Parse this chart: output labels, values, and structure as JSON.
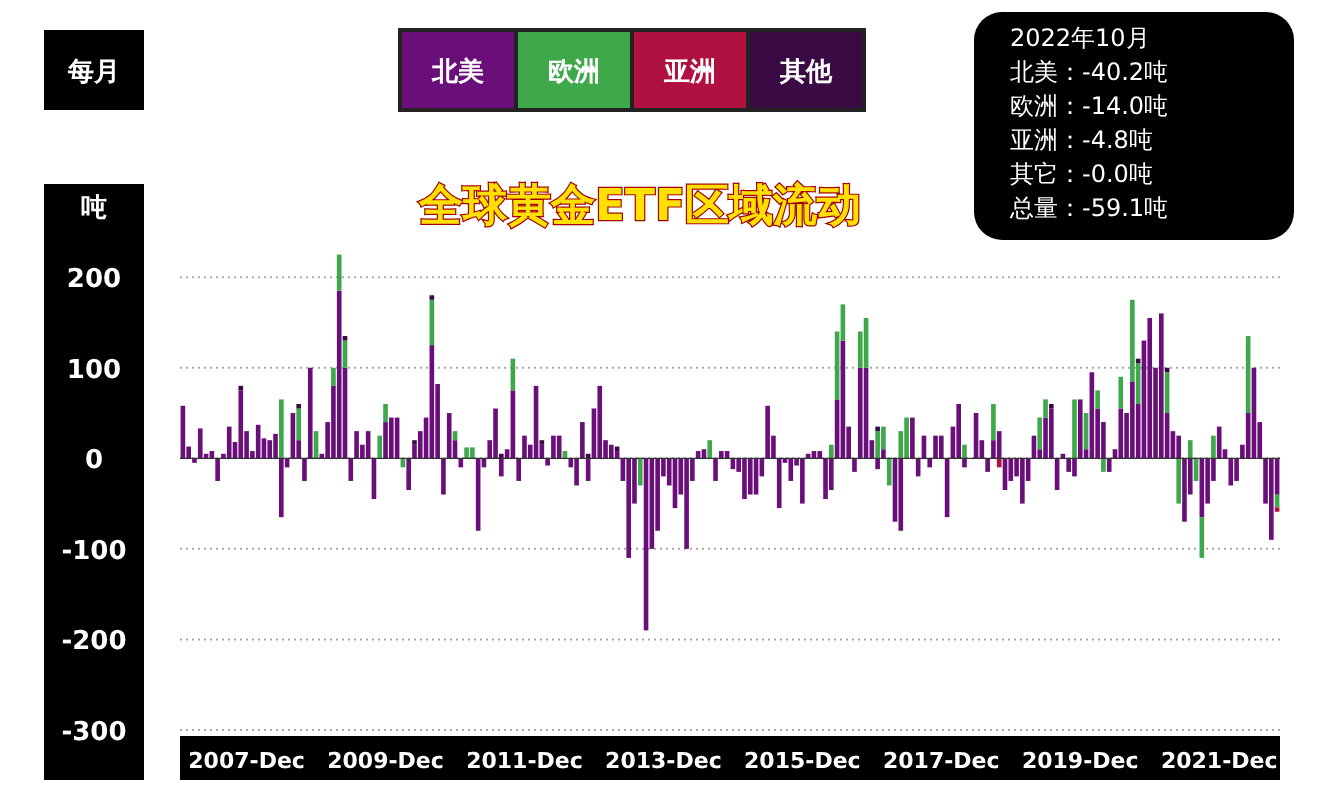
{
  "chart_data": {
    "type": "bar",
    "stacked": true,
    "title": "全球黄金ETF区域流动",
    "ylabel": "吨",
    "legend": "top",
    "grid": "y",
    "ylim": [
      -300,
      230
    ],
    "yticks": [
      -300,
      -200,
      -100,
      0,
      100,
      200
    ],
    "annotations": [
      "每月",
      "2022年10月",
      "北美：-40.2吨",
      "欧洲：-14.0吨",
      "亚洲：-4.8吨",
      "其它：-0.0吨",
      "总量：-59.1吨"
    ],
    "categories": [
      null,
      null,
      null,
      null,
      null,
      null,
      null,
      null,
      null,
      null,
      null,
      "2007-Dec",
      null,
      null,
      null,
      null,
      null,
      null,
      null,
      null,
      null,
      null,
      null,
      null,
      null,
      null,
      null,
      null,
      null,
      null,
      null,
      null,
      null,
      null,
      null,
      "2009-Dec",
      null,
      null,
      null,
      null,
      null,
      null,
      null,
      null,
      null,
      null,
      null,
      null,
      null,
      null,
      null,
      null,
      null,
      null,
      null,
      null,
      null,
      null,
      null,
      "2011-Dec",
      null,
      null,
      null,
      null,
      null,
      null,
      null,
      null,
      null,
      null,
      null,
      null,
      null,
      null,
      null,
      null,
      null,
      null,
      null,
      null,
      null,
      null,
      null,
      "2013-Dec",
      null,
      null,
      null,
      null,
      null,
      null,
      null,
      null,
      null,
      null,
      null,
      null,
      null,
      null,
      null,
      null,
      null,
      null,
      null,
      null,
      null,
      null,
      null,
      "2015-Dec",
      null,
      null,
      null,
      null,
      null,
      null,
      null,
      null,
      null,
      null,
      null,
      null,
      null,
      null,
      null,
      null,
      null,
      null,
      null,
      null,
      null,
      null,
      null,
      "2017-Dec",
      null,
      null,
      null,
      null,
      null,
      null,
      null,
      null,
      null,
      null,
      null,
      null,
      null,
      null,
      null,
      null,
      null,
      null,
      null,
      null,
      null,
      null,
      null,
      "2019-Dec",
      null,
      null,
      null,
      null,
      null,
      null,
      null,
      null,
      null,
      null,
      null,
      null,
      null,
      null,
      null,
      null,
      null,
      null,
      null,
      null,
      null,
      null,
      null,
      "2021-Dec",
      null,
      null,
      null,
      null,
      null,
      null,
      null,
      null,
      null,
      null
    ],
    "series": [
      {
        "name": "北美",
        "color": "#6a0f7a",
        "values": [
          58,
          13,
          -5,
          33,
          5,
          8,
          -25,
          5,
          35,
          18,
          75,
          30,
          8,
          37,
          22,
          20,
          27,
          -65,
          -10,
          50,
          20,
          -25,
          100,
          0,
          5,
          40,
          80,
          185,
          100,
          -25,
          30,
          15,
          30,
          -45,
          0,
          40,
          45,
          45,
          0,
          -35,
          15,
          30,
          45,
          125,
          82,
          -40,
          50,
          20,
          -10,
          0,
          0,
          -80,
          -10,
          20,
          55,
          -20,
          10,
          75,
          -25,
          25,
          15,
          80,
          15,
          -8,
          25,
          25,
          0,
          -10,
          -30,
          40,
          -25,
          55,
          80,
          20,
          15,
          8,
          -25,
          -110,
          -50,
          0,
          -190,
          -100,
          -80,
          -20,
          -30,
          -55,
          -40,
          -100,
          -25,
          8,
          10,
          0,
          -25,
          8,
          8,
          -12,
          -15,
          -45,
          -40,
          -40,
          -20,
          58,
          25,
          -55,
          -5,
          -25,
          -8,
          -50,
          5,
          8,
          8,
          -45,
          -35,
          65,
          130,
          35,
          -15,
          100,
          100,
          20,
          -12,
          10,
          0,
          -70,
          -80,
          0,
          45,
          -20,
          25,
          -10,
          25,
          25,
          -65,
          35,
          60,
          -10,
          0,
          50,
          20,
          -15,
          20,
          30,
          -35,
          -25,
          -20,
          -50,
          -25,
          25,
          10,
          45,
          55,
          -35,
          5,
          -15,
          -20,
          65,
          10,
          95,
          55,
          40,
          -15,
          10,
          55,
          50,
          85,
          60,
          130,
          155,
          100,
          160,
          50,
          30,
          25,
          -70,
          -40,
          0,
          -65,
          -50,
          -25,
          35,
          10,
          -30,
          -25,
          15,
          50,
          100,
          40,
          -50,
          -90,
          -40.2
        ]
      },
      {
        "name": "欧洲",
        "color": "#3ea84a",
        "values": [
          0,
          0,
          0,
          0,
          0,
          0,
          0,
          0,
          0,
          0,
          0,
          0,
          0,
          0,
          0,
          0,
          0,
          65,
          0,
          0,
          35,
          0,
          0,
          30,
          0,
          0,
          20,
          40,
          30,
          0,
          0,
          0,
          0,
          0,
          25,
          20,
          0,
          0,
          -10,
          0,
          0,
          0,
          0,
          50,
          0,
          0,
          0,
          10,
          0,
          12,
          12,
          0,
          0,
          0,
          0,
          0,
          0,
          35,
          0,
          0,
          0,
          0,
          0,
          0,
          0,
          0,
          8,
          0,
          0,
          0,
          0,
          0,
          0,
          0,
          0,
          0,
          0,
          0,
          0,
          -30,
          0,
          0,
          0,
          0,
          0,
          0,
          0,
          0,
          0,
          0,
          0,
          20,
          0,
          0,
          0,
          0,
          0,
          0,
          0,
          0,
          0,
          0,
          0,
          0,
          0,
          0,
          0,
          0,
          0,
          0,
          0,
          0,
          15,
          75,
          40,
          0,
          0,
          40,
          55,
          0,
          30,
          25,
          -30,
          0,
          30,
          45,
          0,
          0,
          0,
          0,
          0,
          0,
          0,
          0,
          0,
          15,
          0,
          0,
          0,
          0,
          40,
          0,
          0,
          0,
          0,
          0,
          0,
          0,
          35,
          20,
          0,
          0,
          0,
          0,
          65,
          0,
          40,
          0,
          20,
          -15,
          0,
          0,
          35,
          0,
          90,
          45,
          0,
          0,
          0,
          0,
          45,
          0,
          -50,
          0,
          20,
          -25,
          -45,
          0,
          25,
          0,
          0,
          0,
          0,
          0,
          85,
          0,
          0,
          0,
          0,
          -14
        ]
      },
      {
        "name": "亚洲",
        "color": "#b01040",
        "values": [
          0,
          0,
          0,
          0,
          0,
          0,
          0,
          0,
          0,
          0,
          0,
          0,
          0,
          0,
          0,
          0,
          0,
          0,
          0,
          0,
          0,
          0,
          0,
          0,
          0,
          0,
          0,
          0,
          0,
          0,
          0,
          0,
          0,
          0,
          0,
          0,
          0,
          0,
          0,
          0,
          0,
          0,
          0,
          0,
          0,
          0,
          0,
          0,
          0,
          0,
          0,
          0,
          0,
          0,
          0,
          0,
          0,
          0,
          0,
          0,
          0,
          0,
          0,
          0,
          0,
          0,
          0,
          0,
          0,
          0,
          0,
          0,
          0,
          0,
          0,
          0,
          0,
          0,
          0,
          0,
          0,
          0,
          0,
          0,
          0,
          0,
          0,
          0,
          0,
          0,
          0,
          0,
          0,
          0,
          0,
          0,
          0,
          0,
          0,
          0,
          0,
          0,
          0,
          0,
          0,
          0,
          0,
          0,
          0,
          0,
          0,
          0,
          0,
          0,
          0,
          0,
          0,
          0,
          0,
          0,
          0,
          0,
          0,
          0,
          0,
          0,
          0,
          0,
          0,
          0,
          0,
          0,
          0,
          0,
          0,
          0,
          0,
          0,
          0,
          0,
          0,
          -10,
          0,
          0,
          0,
          0,
          0,
          0,
          0,
          0,
          0,
          0,
          0,
          0,
          0,
          0,
          0,
          0,
          0,
          0,
          0,
          0,
          0,
          0,
          0,
          0,
          0,
          0,
          0,
          0,
          0,
          0,
          0,
          0,
          0,
          0,
          0,
          0,
          0,
          0,
          0,
          0,
          0,
          0,
          0,
          0,
          0,
          0,
          0,
          -4.8
        ]
      },
      {
        "name": "其他",
        "color": "#3a0a44",
        "values": [
          0,
          0,
          0,
          0,
          0,
          0,
          0,
          0,
          0,
          0,
          5,
          0,
          0,
          0,
          0,
          0,
          0,
          0,
          0,
          0,
          5,
          0,
          0,
          0,
          0,
          0,
          0,
          0,
          5,
          0,
          0,
          0,
          0,
          0,
          0,
          0,
          0,
          0,
          0,
          0,
          5,
          0,
          0,
          5,
          0,
          0,
          0,
          0,
          0,
          0,
          0,
          0,
          0,
          0,
          0,
          5,
          0,
          0,
          0,
          0,
          0,
          0,
          5,
          0,
          0,
          0,
          0,
          0,
          0,
          0,
          5,
          0,
          0,
          0,
          0,
          5,
          0,
          0,
          0,
          0,
          0,
          0,
          0,
          0,
          0,
          0,
          0,
          0,
          0,
          0,
          0,
          0,
          0,
          0,
          0,
          0,
          0,
          0,
          0,
          0,
          0,
          0,
          0,
          0,
          0,
          0,
          0,
          0,
          0,
          0,
          0,
          0,
          0,
          0,
          0,
          0,
          0,
          0,
          0,
          0,
          5,
          0,
          0,
          0,
          0,
          0,
          0,
          0,
          0,
          0,
          0,
          0,
          0,
          0,
          0,
          0,
          0,
          0,
          0,
          0,
          0,
          0,
          0,
          0,
          0,
          0,
          0,
          0,
          0,
          0,
          5,
          0,
          0,
          0,
          0,
          0,
          0,
          0,
          0,
          0,
          0,
          0,
          0,
          0,
          0,
          5,
          0,
          0,
          0,
          0,
          5,
          0,
          0,
          0,
          0,
          0,
          0,
          0,
          0,
          0,
          0,
          0,
          0,
          0,
          0,
          0,
          0,
          0,
          0,
          0
        ]
      }
    ]
  }
}
